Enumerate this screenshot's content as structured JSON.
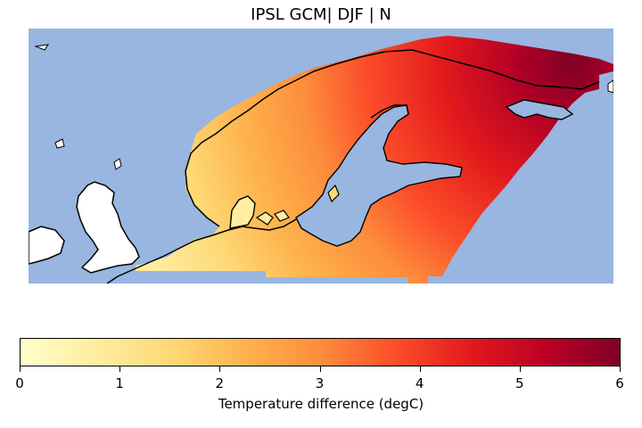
{
  "title": "IPSL GCM| DJF | N",
  "map": {
    "ocean_color": "#98b6e0",
    "land_no_data_color": "#ffffff",
    "coastline_color": "#000000",
    "regions": [
      "British Isles",
      "Scandinavia",
      "Finland",
      "Baltic states",
      "Kola Peninsula"
    ]
  },
  "colorbar": {
    "label": "Temperature difference (degC)",
    "colormap": "YlOrRd",
    "ticks": [
      "0",
      "1",
      "2",
      "3",
      "4",
      "5",
      "6"
    ],
    "min": 0,
    "max": 6,
    "stops": [
      "#ffffcc",
      "#ffeda0",
      "#fed976",
      "#feb24c",
      "#fd8d3c",
      "#fc4e2a",
      "#e31a1c",
      "#bd0026",
      "#800026"
    ]
  }
}
